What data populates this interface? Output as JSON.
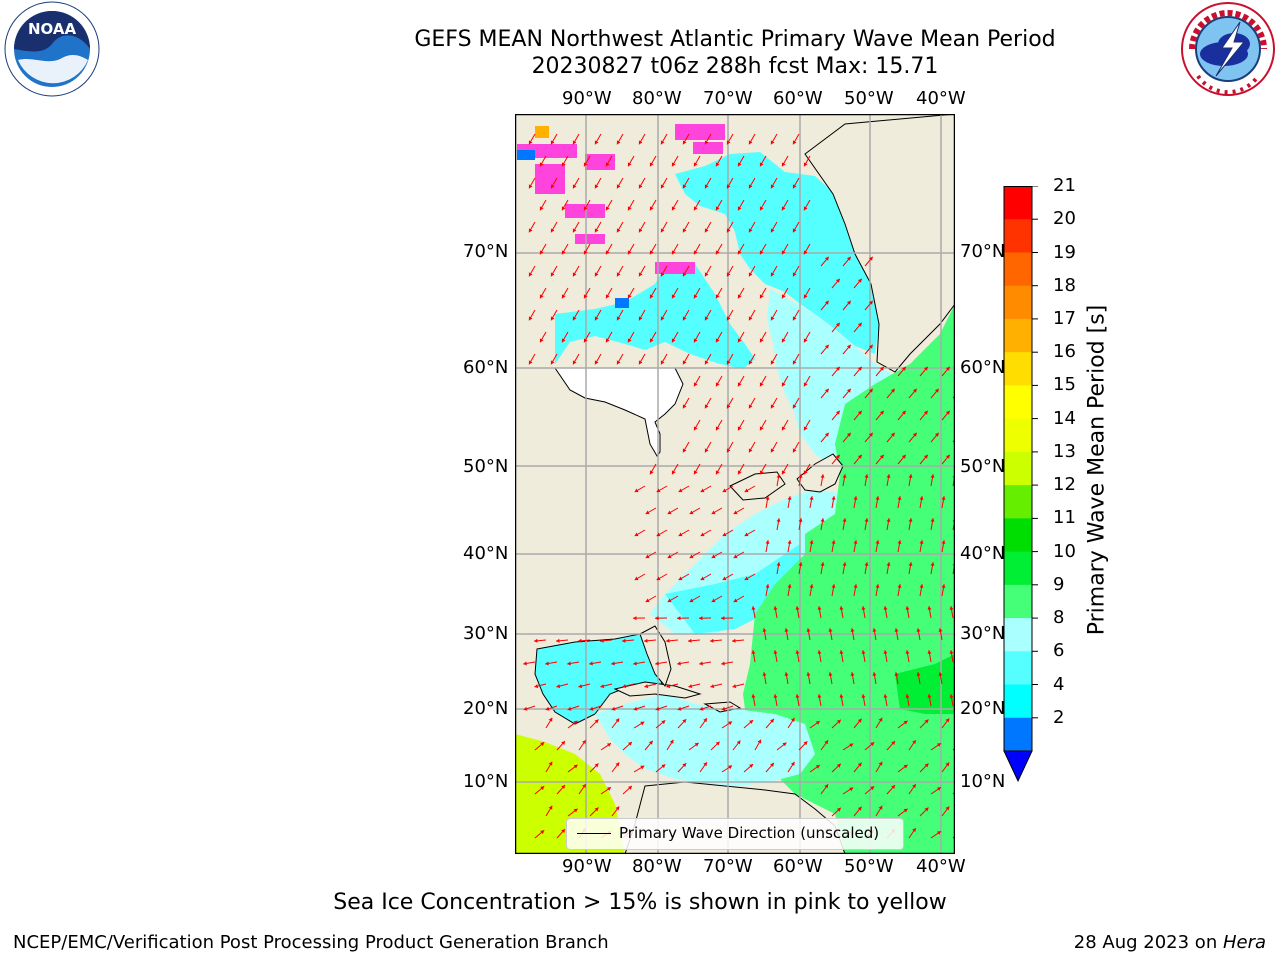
{
  "title_line1": "GEFS MEAN Northwest Atlantic Primary Wave Mean Period",
  "title_line2": "20230827 t06z 288h fcst   Max: 15.71",
  "logos": {
    "left": "noaa-logo",
    "right": "nws-logo",
    "noaa_text": "NOAA"
  },
  "lon_labels": [
    "90°W",
    "80°W",
    "70°W",
    "60°W",
    "50°W",
    "40°W"
  ],
  "lat_labels": [
    "70°N",
    "60°N",
    "50°N",
    "40°N",
    "30°N",
    "20°N",
    "10°N"
  ],
  "legend_label": "Primary Wave Direction (unscaled)",
  "colorbar": {
    "title": "Primary Wave Mean Period [s]",
    "ticks": [
      "21",
      "20",
      "19",
      "18",
      "17",
      "16",
      "15",
      "14",
      "13",
      "12",
      "11",
      "10",
      "9",
      "8",
      "6",
      "4",
      "2"
    ],
    "colors": [
      "#ff0000",
      "#ff3300",
      "#ff6600",
      "#ff8c00",
      "#ffb000",
      "#ffdd00",
      "#ffff00",
      "#eeff00",
      "#ccff00",
      "#66ee00",
      "#00dd00",
      "#00ee33",
      "#44ff77",
      "#aaffff",
      "#55ffff",
      "#00ffff",
      "#0077ff"
    ],
    "extend_color": "#0000ff"
  },
  "map_colors": {
    "land": "#efecdc",
    "ocean_short": "#55ffff",
    "ocean_mid": "#aaffff",
    "ocean_long": "#44ff77",
    "tropic": "#ccff00",
    "ice": "#ff44dd",
    "arrow": "#ff0000",
    "grid": "#aaaaaa"
  },
  "footnote": "Sea Ice Concentration > 15% is shown in pink to yellow",
  "credit_left": "NCEP/EMC/Verification Post Processing Product Generation Branch",
  "credit_right_prefix": "28 Aug 2023 on ",
  "credit_right_host": "Hera"
}
